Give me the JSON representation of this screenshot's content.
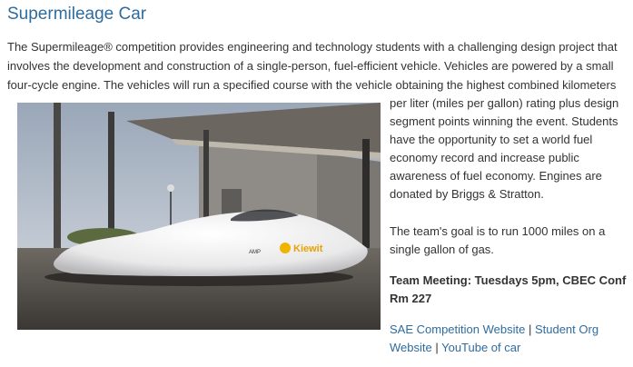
{
  "title": "Supermileage Car",
  "intro": "The Supermileage® competition provides engineering and technology students with a challenging design project that involves the development and construction of a single-person, fuel-efficient vehicle. Vehicles are powered by a small four-cycle engine. The vehicles will run a specified course with the vehicle obtaining the highest combined kilometers",
  "intro_cont": "per liter (miles per gallon) rating plus design segment points winning the event. Students have the opportunity to set a world fuel economy record and increase public awareness of fuel economy. Engines are donated by Briggs & Stratton.",
  "goal": "The team's goal is to run 1000 miles on a single gallon of gas.",
  "meeting": "Team Meeting:  Tuesdays 5pm, CBEC Conf Rm 227",
  "links": {
    "sae": "SAE Competition Website",
    "student_org": "Student Org Website",
    "youtube": "YouTube of car",
    "separator": " | "
  },
  "photo": {
    "sponsor_text": "Kiewit",
    "small_text": "AMP",
    "icon": "supermileage-car-photo"
  }
}
